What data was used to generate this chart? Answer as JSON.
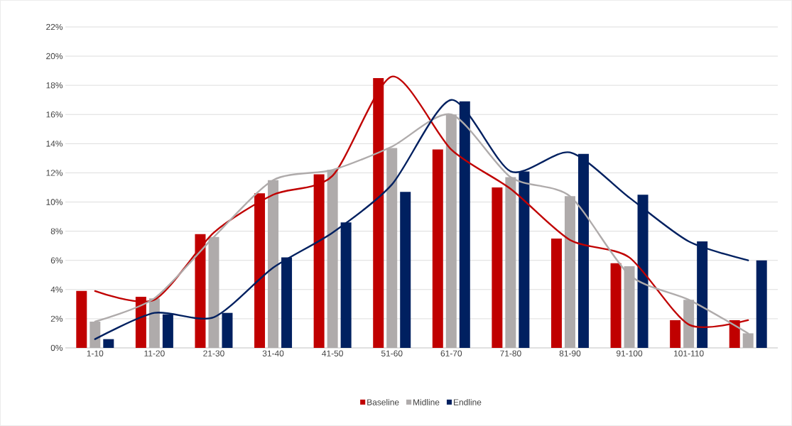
{
  "chart_data": {
    "type": "bar",
    "categories": [
      "1-10",
      "11-20",
      "21-30",
      "31-40",
      "41-50",
      "51-60",
      "61-70",
      "71-80",
      "81-90",
      "91-100",
      "101-110",
      null
    ],
    "series": [
      {
        "name": "Baseline",
        "color": "#c00000",
        "values": [
          3.9,
          3.5,
          7.8,
          10.6,
          11.9,
          18.5,
          13.6,
          11.0,
          7.5,
          5.8,
          1.9,
          1.9
        ]
      },
      {
        "name": "Midline",
        "color": "#afabab",
        "values": [
          1.8,
          3.4,
          7.6,
          11.5,
          12.2,
          13.7,
          16.0,
          11.7,
          10.4,
          5.6,
          3.3,
          1.0
        ]
      },
      {
        "name": "Endline",
        "color": "#002060",
        "values": [
          0.6,
          2.3,
          2.4,
          6.2,
          8.6,
          10.7,
          16.9,
          12.1,
          13.3,
          10.5,
          7.3,
          6.0
        ]
      },
      {
        "type": "line",
        "color": "#c00000",
        "values": [
          3.9,
          3.3,
          7.9,
          10.5,
          11.8,
          18.6,
          13.6,
          10.9,
          7.4,
          6.2,
          1.6,
          1.9
        ]
      },
      {
        "type": "line",
        "color": "#afabab",
        "values": [
          1.8,
          3.4,
          7.6,
          11.5,
          12.2,
          13.8,
          16.0,
          11.7,
          10.4,
          5.0,
          3.3,
          1.0
        ]
      },
      {
        "type": "line",
        "color": "#002060",
        "values": [
          0.6,
          2.4,
          2.1,
          5.5,
          7.9,
          11.2,
          17.0,
          12.1,
          13.4,
          10.3,
          7.3,
          6.0
        ]
      }
    ],
    "ylim": [
      0,
      22
    ],
    "yticks": [
      {
        "value": 0,
        "label": "0%"
      },
      {
        "value": 2,
        "label": "2%"
      },
      {
        "value": 4,
        "label": "4%"
      },
      {
        "value": 6,
        "label": "6%"
      },
      {
        "value": 8,
        "label": "8%"
      },
      {
        "value": 10,
        "label": "10%"
      },
      {
        "value": 12,
        "label": "12%"
      },
      {
        "value": 14,
        "label": "14%"
      },
      {
        "value": 16,
        "label": "16%"
      },
      {
        "value": 18,
        "label": "18%"
      },
      {
        "value": 20,
        "label": "20%"
      },
      {
        "value": 22,
        "label": "22%"
      }
    ],
    "grid": "y",
    "legend": "bottom"
  }
}
